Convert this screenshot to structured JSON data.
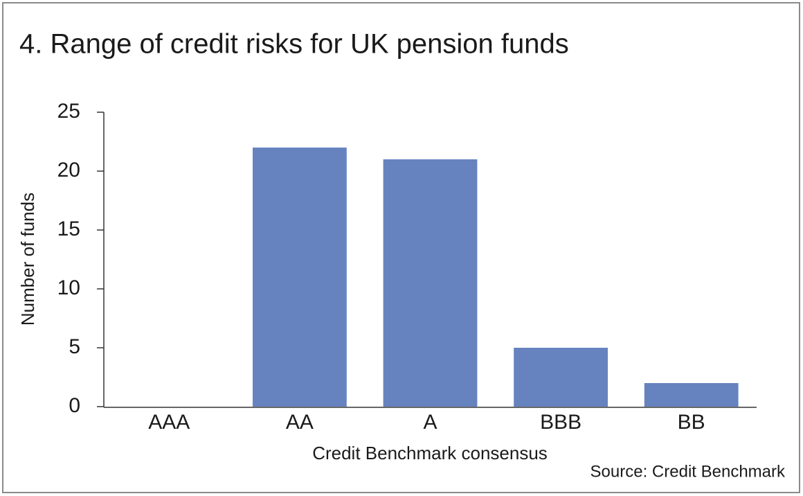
{
  "chart_data": {
    "type": "bar",
    "title": "4. Range of credit risks for UK pension funds",
    "x_label": "Credit Benchmark consensus",
    "y_label": "Number of funds",
    "source": "Source: Credit Benchmark",
    "categories": [
      "AAA",
      "AA",
      "A",
      "BBB",
      "BB"
    ],
    "values": [
      0,
      22,
      21,
      5,
      2
    ],
    "color": "#6683c0",
    "ylim": [
      0,
      25
    ],
    "yticks": [
      0,
      5,
      10,
      15,
      20,
      25
    ],
    "grid": false
  }
}
